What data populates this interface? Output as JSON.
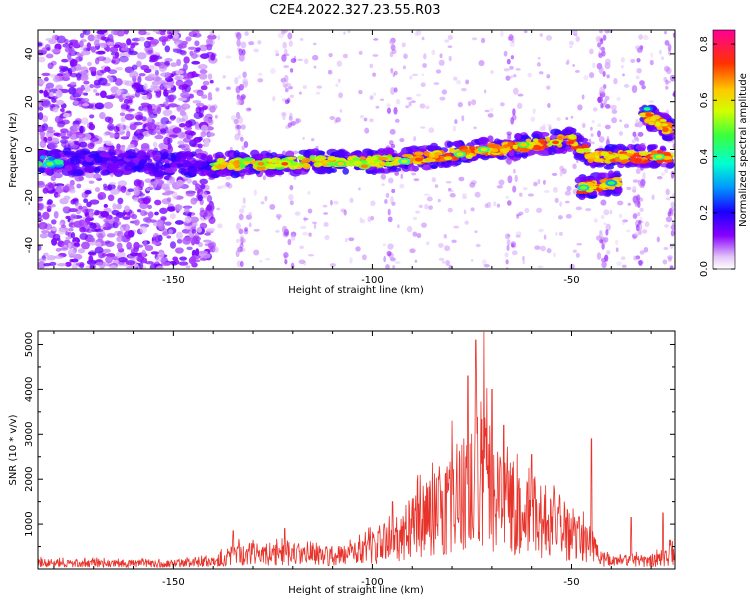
{
  "title": "C2E4.2022.327.23.55.R03",
  "colors": {
    "snr_line": "#e8332b",
    "axis": "#000000"
  },
  "chart_data": [
    {
      "type": "heatmap",
      "xlabel": "Height of straight line (km)",
      "ylabel": "Frequency (Hz)",
      "xlim": [
        -184,
        -24
      ],
      "ylim": [
        -50,
        50
      ],
      "x_ticks": [
        -150,
        -100,
        -50
      ],
      "x_tick_labels": [
        "-150",
        "-100",
        "-50"
      ],
      "y_ticks": [
        -40,
        -20,
        0,
        20,
        40
      ],
      "y_tick_labels": [
        "-40",
        "-20",
        "0",
        "20",
        "40"
      ],
      "colorbar": {
        "label": "Normalized spectral amplitude",
        "range": [
          0,
          0.85
        ],
        "ticks": [
          0.0,
          0.2,
          0.4,
          0.6,
          0.8
        ],
        "tick_labels": [
          "0.0",
          "0.2",
          "0.4",
          "0.6",
          "0.8"
        ],
        "colormap": "rainbow"
      },
      "ridges": [
        {
          "x": [
            -184,
            -150,
            -140,
            -130,
            -120,
            -110,
            -100,
            -90,
            -80,
            -70,
            -60,
            -55,
            -50,
            -45,
            -40,
            -35,
            -30,
            -25
          ],
          "y": [
            -5,
            -6,
            -6.5,
            -6,
            -5.5,
            -5,
            -5,
            -4,
            -2,
            0,
            2,
            3,
            4,
            -3,
            -3,
            -3,
            -3,
            -3
          ]
        },
        {
          "x": [
            -48,
            -38
          ],
          "y": [
            -16,
            -14
          ]
        },
        {
          "x": [
            -32,
            -25
          ],
          "y": [
            15,
            8
          ]
        }
      ]
    },
    {
      "type": "line",
      "xlabel": "Height of straight line (km)",
      "ylabel": "SNR (10 * v/v)",
      "xlim": [
        -184,
        -24
      ],
      "ylim": [
        0,
        5300
      ],
      "x_ticks": [
        -150,
        -100,
        -50
      ],
      "x_tick_labels": [
        "-150",
        "-100",
        "-50"
      ],
      "y_ticks": [
        1000,
        2000,
        3000,
        4000,
        5000
      ],
      "y_tick_labels": [
        "1000",
        "2000",
        "3000",
        "4000",
        "5000"
      ],
      "series": [
        {
          "x": [
            -184,
            -170,
            -155,
            -145,
            -140,
            -135,
            -125,
            -115,
            -105,
            -100,
            -95,
            -90,
            -85,
            -80,
            -75,
            -72,
            -70,
            -65,
            -60,
            -55,
            -50,
            -45,
            -43,
            -40,
            -35,
            -30,
            -25,
            -24
          ],
          "y": [
            200,
            180,
            170,
            190,
            260,
            500,
            500,
            450,
            500,
            700,
            900,
            1400,
            1800,
            2300,
            2700,
            3300,
            2400,
            2000,
            1700,
            1400,
            1100,
            900,
            400,
            220,
            300,
            250,
            500,
            380
          ],
          "peaks": [
            [
              -74,
              5100
            ],
            [
              -72,
              5280
            ],
            [
              -80,
              3300
            ],
            [
              -76,
              4300
            ],
            [
              -70,
              4000
            ],
            [
              -67,
              3200
            ],
            [
              -45,
              2900
            ],
            [
              -60,
              2550
            ],
            [
              -88,
              2100
            ],
            [
              -95,
              1500
            ],
            [
              -135,
              850
            ],
            [
              -122,
              900
            ],
            [
              -27,
              1250
            ],
            [
              -35,
              1150
            ]
          ]
        }
      ]
    }
  ]
}
